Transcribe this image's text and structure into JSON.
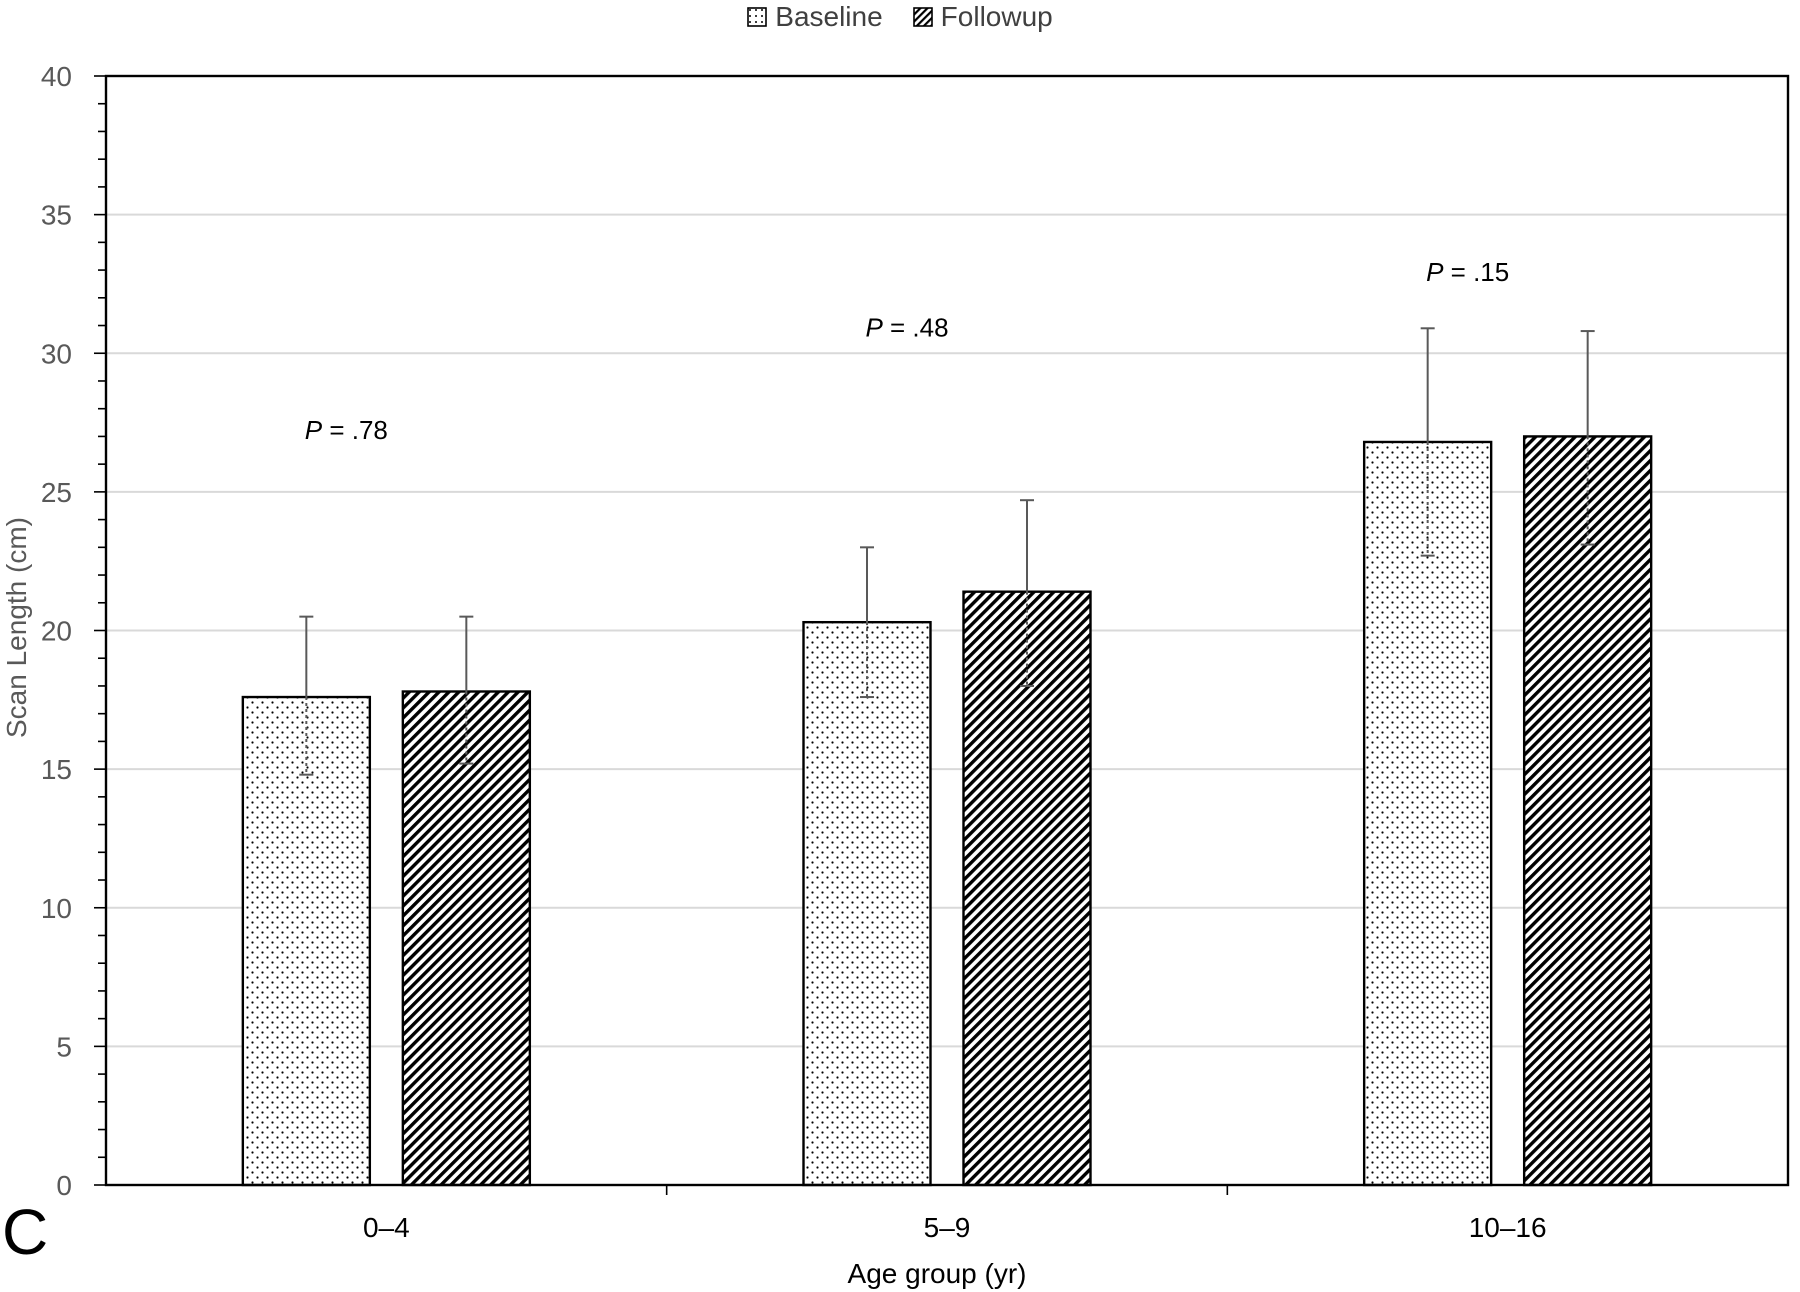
{
  "chart_data": {
    "type": "bar",
    "categories": [
      "0–4",
      "5–9",
      "10–16"
    ],
    "series": [
      {
        "name": "Baseline",
        "values": [
          17.6,
          20.3,
          26.8
        ],
        "error_low": [
          14.8,
          17.6,
          22.7
        ],
        "error_high": [
          20.5,
          23.0,
          30.9
        ],
        "pattern": "dots"
      },
      {
        "name": "Followup",
        "values": [
          17.8,
          21.4,
          27.0
        ],
        "error_low": [
          15.2,
          18.0,
          23.1
        ],
        "error_high": [
          20.5,
          24.7,
          30.8
        ],
        "pattern": "diagonal-hatch"
      }
    ],
    "annotations": [
      {
        "label_italic": "P",
        "label_rest": " = .78",
        "category": "0–4",
        "y": 26.9
      },
      {
        "label_italic": "P",
        "label_rest": " = .48",
        "category": "5–9",
        "y": 30.6
      },
      {
        "label_italic": "P",
        "label_rest": " = .15",
        "category": "10–16",
        "y": 32.6
      }
    ],
    "xlabel": "Age group (yr)",
    "ylabel": "Scan Length (cm)",
    "ylim": [
      0,
      40
    ],
    "yticks": [
      "0",
      "5",
      "10",
      "15",
      "20",
      "25",
      "30",
      "35",
      "40"
    ],
    "grid": true,
    "legend_position": "top-center"
  },
  "panel_label": "C",
  "colors": {
    "axis": "#000000",
    "grid": "#d9d9d9",
    "tick_text": "#595959",
    "errorbar": "#595959"
  }
}
